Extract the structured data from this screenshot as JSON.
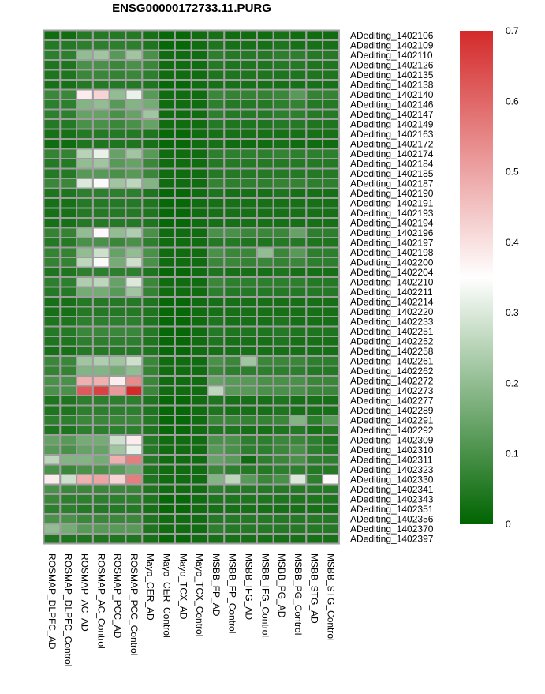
{
  "chart_data": {
    "type": "heatmap",
    "title": "ENSG00000172733.11.PURG",
    "columns": [
      "ROSMAP_DLPFC_AD",
      "ROSMAP_DLPFC_Control",
      "ROSMAP_AC_AD",
      "ROSMAP_AC_Control",
      "ROSMAP_PCC_AD",
      "ROSMAP_PCC_Control",
      "Mayo_CER_AD",
      "Mayo_CER_Control",
      "Mayo_TCX_AD",
      "Mayo_TCX_Control",
      "MSBB_FP_AD",
      "MSBB_FP_Control",
      "MSBB_IFG_AD",
      "MSBB_IFG_Control",
      "MSBB_PG_AD",
      "MSBB_PG_Control",
      "MSBB_STG_AD",
      "MSBB_STG_Control"
    ],
    "rows": [
      "ADediting_1402106",
      "ADediting_1402109",
      "ADediting_1402110",
      "ADediting_1402126",
      "ADediting_1402135",
      "ADediting_1402138",
      "ADediting_1402140",
      "ADediting_1402146",
      "ADediting_1402147",
      "ADediting_1402149",
      "ADediting_1402163",
      "ADediting_1402172",
      "ADediting_1402174",
      "ADediting_1402184",
      "ADediting_1402185",
      "ADediting_1402187",
      "ADediting_1402190",
      "ADediting_1402191",
      "ADediting_1402193",
      "ADediting_1402194",
      "ADediting_1402196",
      "ADediting_1402197",
      "ADediting_1402198",
      "ADediting_1402200",
      "ADediting_1402204",
      "ADediting_1402210",
      "ADediting_1402211",
      "ADediting_1402214",
      "ADediting_1402220",
      "ADediting_1402233",
      "ADediting_1402251",
      "ADediting_1402252",
      "ADediting_1402258",
      "ADediting_1402261",
      "ADediting_1402262",
      "ADediting_1402272",
      "ADediting_1402273",
      "ADediting_1402277",
      "ADediting_1402289",
      "ADediting_1402291",
      "ADediting_1402292",
      "ADediting_1402309",
      "ADediting_1402310",
      "ADediting_1402311",
      "ADediting_1402323",
      "ADediting_1402330",
      "ADediting_1402341",
      "ADediting_1402343",
      "ADediting_1402351",
      "ADediting_1402356",
      "ADediting_1402370",
      "ADediting_1402397"
    ],
    "values": [
      [
        0.02,
        0.02,
        0.05,
        0.05,
        0.05,
        0.05,
        0.03,
        0.01,
        0.01,
        0.02,
        0.03,
        0.02,
        0.02,
        0.02,
        0.03,
        0.02,
        0.02,
        0.02
      ],
      [
        0.05,
        0.05,
        0.06,
        0.06,
        0.06,
        0.06,
        0.04,
        0.01,
        0.01,
        0.02,
        0.04,
        0.03,
        0.03,
        0.03,
        0.04,
        0.03,
        0.03,
        0.03
      ],
      [
        0.06,
        0.06,
        0.2,
        0.22,
        0.12,
        0.22,
        0.1,
        0.02,
        0.02,
        0.02,
        0.06,
        0.05,
        0.05,
        0.05,
        0.06,
        0.06,
        0.05,
        0.05
      ],
      [
        0.04,
        0.04,
        0.1,
        0.1,
        0.08,
        0.1,
        0.08,
        0.02,
        0.02,
        0.02,
        0.05,
        0.04,
        0.04,
        0.04,
        0.05,
        0.05,
        0.04,
        0.04
      ],
      [
        0.04,
        0.04,
        0.08,
        0.08,
        0.07,
        0.08,
        0.06,
        0.02,
        0.02,
        0.02,
        0.04,
        0.04,
        0.04,
        0.04,
        0.04,
        0.04,
        0.04,
        0.04
      ],
      [
        0.03,
        0.03,
        0.05,
        0.05,
        0.05,
        0.05,
        0.04,
        0.01,
        0.01,
        0.02,
        0.03,
        0.03,
        0.03,
        0.03,
        0.03,
        0.03,
        0.03,
        0.03
      ],
      [
        0.08,
        0.08,
        0.38,
        0.42,
        0.2,
        0.32,
        0.12,
        0.02,
        0.02,
        0.02,
        0.08,
        0.07,
        0.07,
        0.07,
        0.08,
        0.12,
        0.07,
        0.07
      ],
      [
        0.06,
        0.06,
        0.18,
        0.2,
        0.12,
        0.18,
        0.16,
        0.02,
        0.02,
        0.02,
        0.06,
        0.05,
        0.05,
        0.05,
        0.06,
        0.07,
        0.05,
        0.05
      ],
      [
        0.06,
        0.06,
        0.14,
        0.14,
        0.1,
        0.14,
        0.22,
        0.02,
        0.02,
        0.02,
        0.06,
        0.05,
        0.05,
        0.05,
        0.06,
        0.06,
        0.05,
        0.05
      ],
      [
        0.05,
        0.05,
        0.1,
        0.1,
        0.08,
        0.1,
        0.14,
        0.02,
        0.02,
        0.02,
        0.05,
        0.04,
        0.04,
        0.04,
        0.05,
        0.05,
        0.04,
        0.04
      ],
      [
        0.03,
        0.03,
        0.05,
        0.05,
        0.05,
        0.05,
        0.04,
        0.01,
        0.01,
        0.02,
        0.03,
        0.03,
        0.03,
        0.03,
        0.03,
        0.03,
        0.03,
        0.03
      ],
      [
        0.02,
        0.02,
        0.04,
        0.04,
        0.04,
        0.04,
        0.03,
        0.01,
        0.01,
        0.02,
        0.03,
        0.02,
        0.02,
        0.02,
        0.03,
        0.02,
        0.02,
        0.02
      ],
      [
        0.07,
        0.07,
        0.25,
        0.32,
        0.14,
        0.22,
        0.12,
        0.02,
        0.02,
        0.02,
        0.06,
        0.06,
        0.06,
        0.06,
        0.07,
        0.06,
        0.06,
        0.06
      ],
      [
        0.05,
        0.05,
        0.2,
        0.22,
        0.12,
        0.14,
        0.08,
        0.02,
        0.02,
        0.02,
        0.05,
        0.05,
        0.05,
        0.05,
        0.05,
        0.05,
        0.05,
        0.05
      ],
      [
        0.05,
        0.05,
        0.12,
        0.12,
        0.1,
        0.12,
        0.08,
        0.02,
        0.02,
        0.02,
        0.05,
        0.05,
        0.05,
        0.05,
        0.05,
        0.05,
        0.05,
        0.05
      ],
      [
        0.08,
        0.08,
        0.3,
        0.34,
        0.22,
        0.26,
        0.18,
        0.02,
        0.02,
        0.02,
        0.07,
        0.06,
        0.06,
        0.06,
        0.07,
        0.07,
        0.06,
        0.06
      ],
      [
        0.04,
        0.04,
        0.06,
        0.06,
        0.06,
        0.06,
        0.04,
        0.01,
        0.01,
        0.02,
        0.04,
        0.03,
        0.03,
        0.03,
        0.04,
        0.03,
        0.03,
        0.03
      ],
      [
        0.03,
        0.03,
        0.05,
        0.05,
        0.05,
        0.05,
        0.04,
        0.01,
        0.01,
        0.02,
        0.03,
        0.03,
        0.03,
        0.03,
        0.03,
        0.03,
        0.03,
        0.03
      ],
      [
        0.03,
        0.03,
        0.05,
        0.05,
        0.05,
        0.05,
        0.04,
        0.01,
        0.01,
        0.02,
        0.03,
        0.03,
        0.03,
        0.03,
        0.03,
        0.03,
        0.03,
        0.03
      ],
      [
        0.03,
        0.03,
        0.05,
        0.05,
        0.05,
        0.05,
        0.04,
        0.01,
        0.01,
        0.02,
        0.03,
        0.03,
        0.03,
        0.03,
        0.03,
        0.03,
        0.03,
        0.03
      ],
      [
        0.07,
        0.07,
        0.2,
        0.36,
        0.2,
        0.24,
        0.1,
        0.02,
        0.02,
        0.02,
        0.1,
        0.1,
        0.08,
        0.08,
        0.08,
        0.14,
        0.06,
        0.06
      ],
      [
        0.05,
        0.05,
        0.1,
        0.1,
        0.08,
        0.1,
        0.06,
        0.02,
        0.02,
        0.02,
        0.05,
        0.05,
        0.04,
        0.04,
        0.05,
        0.05,
        0.04,
        0.04
      ],
      [
        0.07,
        0.07,
        0.2,
        0.28,
        0.14,
        0.2,
        0.1,
        0.02,
        0.02,
        0.02,
        0.1,
        0.08,
        0.08,
        0.2,
        0.08,
        0.12,
        0.06,
        0.06
      ],
      [
        0.07,
        0.07,
        0.26,
        0.34,
        0.16,
        0.28,
        0.1,
        0.02,
        0.02,
        0.02,
        0.08,
        0.08,
        0.07,
        0.08,
        0.07,
        0.08,
        0.06,
        0.06
      ],
      [
        0.04,
        0.04,
        0.06,
        0.06,
        0.06,
        0.06,
        0.04,
        0.01,
        0.01,
        0.02,
        0.04,
        0.03,
        0.03,
        0.03,
        0.04,
        0.03,
        0.03,
        0.03
      ],
      [
        0.06,
        0.06,
        0.24,
        0.26,
        0.14,
        0.3,
        0.08,
        0.02,
        0.02,
        0.02,
        0.08,
        0.06,
        0.06,
        0.06,
        0.06,
        0.06,
        0.05,
        0.05
      ],
      [
        0.05,
        0.05,
        0.16,
        0.16,
        0.12,
        0.22,
        0.07,
        0.02,
        0.02,
        0.02,
        0.06,
        0.05,
        0.05,
        0.05,
        0.05,
        0.05,
        0.05,
        0.05
      ],
      [
        0.03,
        0.03,
        0.05,
        0.05,
        0.05,
        0.05,
        0.04,
        0.01,
        0.01,
        0.02,
        0.03,
        0.03,
        0.03,
        0.03,
        0.03,
        0.03,
        0.03,
        0.03
      ],
      [
        0.03,
        0.03,
        0.05,
        0.05,
        0.05,
        0.05,
        0.04,
        0.01,
        0.01,
        0.02,
        0.03,
        0.03,
        0.03,
        0.03,
        0.03,
        0.03,
        0.03,
        0.03
      ],
      [
        0.04,
        0.04,
        0.06,
        0.06,
        0.06,
        0.06,
        0.04,
        0.01,
        0.01,
        0.02,
        0.04,
        0.03,
        0.03,
        0.03,
        0.04,
        0.03,
        0.03,
        0.03
      ],
      [
        0.05,
        0.05,
        0.08,
        0.08,
        0.08,
        0.08,
        0.05,
        0.01,
        0.01,
        0.02,
        0.05,
        0.04,
        0.04,
        0.04,
        0.05,
        0.04,
        0.04,
        0.04
      ],
      [
        0.04,
        0.04,
        0.06,
        0.06,
        0.06,
        0.06,
        0.04,
        0.01,
        0.01,
        0.02,
        0.04,
        0.03,
        0.03,
        0.03,
        0.04,
        0.03,
        0.03,
        0.03
      ],
      [
        0.03,
        0.03,
        0.05,
        0.05,
        0.05,
        0.05,
        0.04,
        0.01,
        0.01,
        0.02,
        0.03,
        0.03,
        0.03,
        0.03,
        0.03,
        0.03,
        0.03,
        0.03
      ],
      [
        0.08,
        0.08,
        0.22,
        0.24,
        0.22,
        0.28,
        0.08,
        0.02,
        0.02,
        0.02,
        0.1,
        0.08,
        0.22,
        0.08,
        0.08,
        0.08,
        0.06,
        0.06
      ],
      [
        0.07,
        0.07,
        0.18,
        0.18,
        0.16,
        0.2,
        0.07,
        0.02,
        0.02,
        0.02,
        0.08,
        0.06,
        0.06,
        0.06,
        0.06,
        0.06,
        0.05,
        0.05
      ],
      [
        0.1,
        0.1,
        0.48,
        0.48,
        0.38,
        0.54,
        0.08,
        0.02,
        0.02,
        0.02,
        0.14,
        0.12,
        0.12,
        0.1,
        0.1,
        0.1,
        0.08,
        0.08
      ],
      [
        0.1,
        0.1,
        0.62,
        0.66,
        0.52,
        0.7,
        0.08,
        0.02,
        0.02,
        0.02,
        0.26,
        0.12,
        0.12,
        0.1,
        0.1,
        0.1,
        0.08,
        0.08
      ],
      [
        0.04,
        0.04,
        0.06,
        0.06,
        0.06,
        0.06,
        0.04,
        0.01,
        0.01,
        0.02,
        0.04,
        0.03,
        0.03,
        0.03,
        0.04,
        0.03,
        0.03,
        0.03
      ],
      [
        0.04,
        0.04,
        0.06,
        0.06,
        0.06,
        0.06,
        0.04,
        0.01,
        0.01,
        0.02,
        0.04,
        0.03,
        0.03,
        0.03,
        0.04,
        0.03,
        0.03,
        0.03
      ],
      [
        0.06,
        0.06,
        0.08,
        0.08,
        0.08,
        0.08,
        0.05,
        0.01,
        0.01,
        0.02,
        0.08,
        0.08,
        0.07,
        0.07,
        0.08,
        0.18,
        0.06,
        0.12
      ],
      [
        0.04,
        0.04,
        0.06,
        0.06,
        0.06,
        0.06,
        0.04,
        0.01,
        0.01,
        0.02,
        0.04,
        0.04,
        0.03,
        0.03,
        0.04,
        0.05,
        0.03,
        0.05
      ],
      [
        0.14,
        0.12,
        0.16,
        0.16,
        0.28,
        0.38,
        0.05,
        0.02,
        0.02,
        0.02,
        0.1,
        0.1,
        0.06,
        0.06,
        0.08,
        0.08,
        0.06,
        0.04
      ],
      [
        0.12,
        0.1,
        0.14,
        0.14,
        0.22,
        0.32,
        0.05,
        0.02,
        0.02,
        0.02,
        0.12,
        0.1,
        0.06,
        0.06,
        0.08,
        0.1,
        0.06,
        0.05
      ],
      [
        0.26,
        0.18,
        0.18,
        0.16,
        0.48,
        0.56,
        0.05,
        0.02,
        0.02,
        0.02,
        0.14,
        0.12,
        0.02,
        0.06,
        0.08,
        0.1,
        0.06,
        0.06
      ],
      [
        0.1,
        0.08,
        0.1,
        0.1,
        0.12,
        0.16,
        0.04,
        0.02,
        0.02,
        0.02,
        0.08,
        0.06,
        0.05,
        0.05,
        0.06,
        0.06,
        0.05,
        0.05
      ],
      [
        0.38,
        0.28,
        0.48,
        0.5,
        0.42,
        0.56,
        0.04,
        0.02,
        0.02,
        0.02,
        0.18,
        0.26,
        0.12,
        0.08,
        0.1,
        0.3,
        0.06,
        0.36
      ],
      [
        0.1,
        0.08,
        0.08,
        0.08,
        0.08,
        0.08,
        0.04,
        0.02,
        0.02,
        0.02,
        0.06,
        0.05,
        0.05,
        0.05,
        0.05,
        0.05,
        0.05,
        0.05
      ],
      [
        0.08,
        0.06,
        0.06,
        0.06,
        0.06,
        0.06,
        0.04,
        0.01,
        0.01,
        0.02,
        0.04,
        0.04,
        0.04,
        0.04,
        0.04,
        0.04,
        0.04,
        0.04
      ],
      [
        0.06,
        0.06,
        0.05,
        0.05,
        0.05,
        0.05,
        0.03,
        0.01,
        0.01,
        0.02,
        0.03,
        0.03,
        0.03,
        0.03,
        0.03,
        0.03,
        0.03,
        0.03
      ],
      [
        0.1,
        0.1,
        0.08,
        0.08,
        0.08,
        0.08,
        0.04,
        0.02,
        0.02,
        0.02,
        0.05,
        0.05,
        0.05,
        0.05,
        0.05,
        0.05,
        0.05,
        0.05
      ],
      [
        0.2,
        0.16,
        0.12,
        0.12,
        0.12,
        0.12,
        0.04,
        0.02,
        0.02,
        0.02,
        0.06,
        0.05,
        0.05,
        0.05,
        0.05,
        0.05,
        0.05,
        0.05
      ],
      [
        0.04,
        0.04,
        0.04,
        0.04,
        0.04,
        0.04,
        0.03,
        0.01,
        0.01,
        0.02,
        0.03,
        0.03,
        0.03,
        0.03,
        0.03,
        0.03,
        0.03,
        0.03
      ]
    ],
    "color_scale": {
      "min": 0,
      "max": 0.7,
      "mid": 0.35,
      "low_color": "#006400",
      "mid_color": "#ffffff",
      "high_color": "#d42a2a"
    },
    "colorbar_ticks": [
      0,
      0.1,
      0.2,
      0.3,
      0.4,
      0.5,
      0.6,
      0.7
    ],
    "colorbar_tick_labels": [
      "0",
      "0.1",
      "0.2",
      "0.3",
      "0.4",
      "0.5",
      "0.6",
      "0.7"
    ],
    "grid_line_color": "#9e9e9e",
    "xlabel": "",
    "ylabel": "",
    "legend": "right"
  }
}
